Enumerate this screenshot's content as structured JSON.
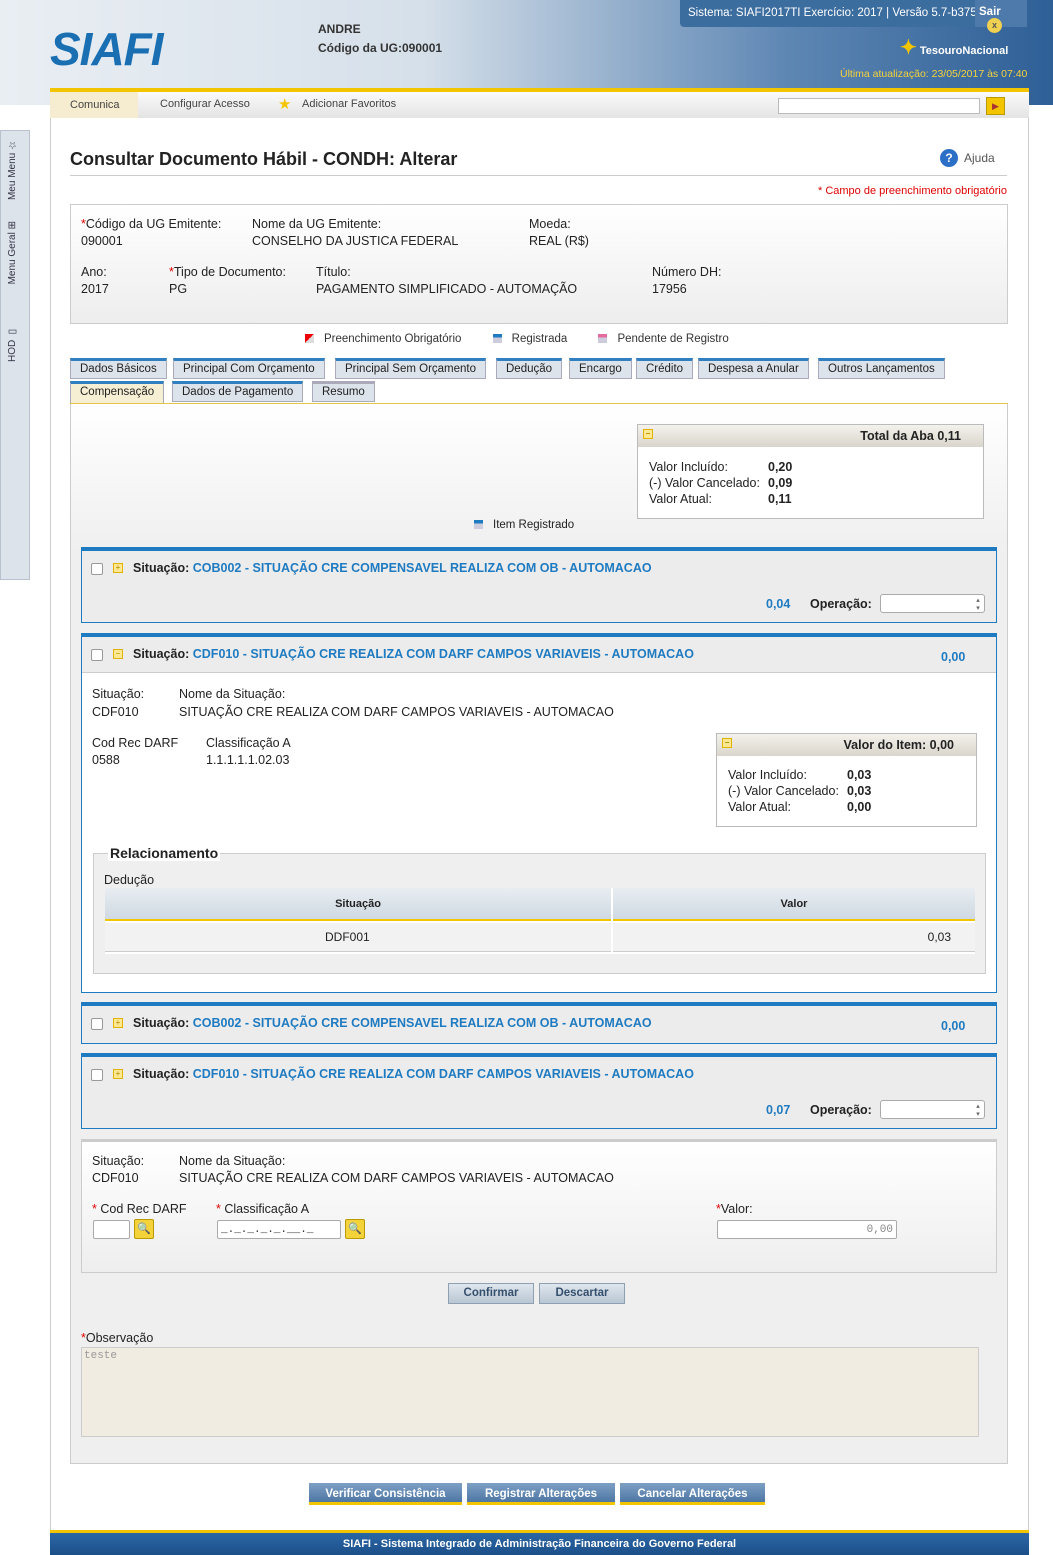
{
  "header": {
    "logo": "SIAFI",
    "user": "ANDRE",
    "ug_label": "Código da UG:",
    "ug_value": "090001",
    "system_info": "Sistema: SIAFI2017TI Exercício: 2017 | Versão 5.7-b3752",
    "logout": "Sair",
    "treasury": "TesouroNacional",
    "last_update": "Última atualização: 23/05/2017 às 07:40"
  },
  "sidebar": {
    "items": [
      {
        "label": "Meu Menu",
        "icon": "star-icon"
      },
      {
        "label": "Menu Geral",
        "icon": "sitemap-icon"
      },
      {
        "label": "HOD",
        "icon": "monitor-icon"
      }
    ]
  },
  "menu": {
    "items": [
      "Comunica",
      "Configurar Acesso",
      "Adicionar Favoritos"
    ],
    "search_value": ""
  },
  "page": {
    "title": "Consultar Documento Hábil - CONDH: Alterar",
    "help": "Ajuda",
    "required_note": "* Campo de preenchimento obrigatório"
  },
  "doc": {
    "ug_emitente_label": "Código da UG Emitente:",
    "ug_emitente": "090001",
    "nome_ug_label": "Nome da UG Emitente:",
    "nome_ug": "CONSELHO DA JUSTICA FEDERAL",
    "moeda_label": "Moeda:",
    "moeda": "REAL (R$)",
    "ano_label": "Ano:",
    "ano": "2017",
    "tipo_label": "Tipo de Documento:",
    "tipo": "PG",
    "titulo_label": "Título:",
    "titulo": "PAGAMENTO SIMPLIFICADO - AUTOMAÇÃO",
    "numero_label": "Número DH:",
    "numero": "17956"
  },
  "legend": {
    "obrigatorio": "Preenchimento Obrigatório",
    "registrada": "Registrada",
    "pendente": "Pendente de Registro",
    "item_registrado": "Item Registrado"
  },
  "tabs": [
    "Dados Básicos",
    "Principal Com Orçamento",
    "Principal Sem Orçamento",
    "Dedução",
    "Encargo",
    "Crédito",
    "Despesa a Anular",
    "Outros Lançamentos",
    "Compensação",
    "Dados de Pagamento",
    "Resumo"
  ],
  "active_tab": "Compensação",
  "total": {
    "title": "Total da Aba 0,11",
    "incluido_label": "Valor Incluído:",
    "incluido": "0,20",
    "cancelado_label": "(-) Valor Cancelado:",
    "cancelado": "0,09",
    "atual_label": "Valor Atual:",
    "atual": "0,11"
  },
  "situacao_label": "Situação:",
  "operacao_label": "Operação:",
  "items": [
    {
      "code": "COB002 - SITUAÇÃO CRE COMPENSAVEL REALIZA COM OB - AUTOMACAO",
      "value": "0,04"
    },
    {
      "code": "CDF010 - SITUAÇÃO CRE REALIZA COM DARF CAMPOS VARIAVEIS - AUTOMACAO",
      "value": "0,00"
    },
    {
      "code": "COB002 - SITUAÇÃO CRE COMPENSAVEL REALIZA COM OB - AUTOMACAO",
      "value": "0,00"
    },
    {
      "code": "CDF010 - SITUAÇÃO CRE REALIZA COM DARF CAMPOS VARIAVEIS - AUTOMACAO",
      "value": "0,07"
    }
  ],
  "detail1": {
    "sit_label": "Situação:",
    "sit": "CDF010",
    "nome_label": "Nome da Situação:",
    "nome": "SITUAÇÃO CRE REALIZA COM DARF CAMPOS VARIAVEIS - AUTOMACAO",
    "cod_label": "Cod Rec DARF",
    "cod": "0588",
    "class_label": "Classificação A",
    "class": "1.1.1.1.1.02.03",
    "valor_item": {
      "title": "Valor do Item: 0,00",
      "incluido_label": "Valor Incluído:",
      "incluido": "0,03",
      "cancelado_label": "(-) Valor Cancelado:",
      "cancelado": "0,03",
      "atual_label": "Valor Atual:",
      "atual": "0,00"
    },
    "rel_title": "Relacionamento",
    "rel_sub": "Dedução",
    "columns": [
      "Situação",
      "Valor"
    ],
    "rows": [
      [
        "DDF001",
        "0,03"
      ]
    ]
  },
  "detail2": {
    "sit_label": "Situação:",
    "sit": "CDF010",
    "nome_label": "Nome da Situação:",
    "nome": "SITUAÇÃO CRE REALIZA COM DARF CAMPOS VARIAVEIS - AUTOMACAO",
    "cod_label": "Cod Rec DARF",
    "class_label": "Classificação A",
    "class_mask": "_._._._._.__._",
    "valor_label": "Valor:",
    "valor": "0,00",
    "confirm": "Confirmar",
    "discard": "Descartar"
  },
  "obs": {
    "label": "Observação",
    "value": "teste"
  },
  "actions": [
    "Verificar Consistência",
    "Registrar Alterações",
    "Cancelar Alterações"
  ],
  "footer": "SIAFI - Sistema Integrado de Administração Financeira do Governo Federal",
  "colors": {
    "accent": "#1f7bc1",
    "yellow": "#f2c500",
    "required": "#dd0000"
  }
}
